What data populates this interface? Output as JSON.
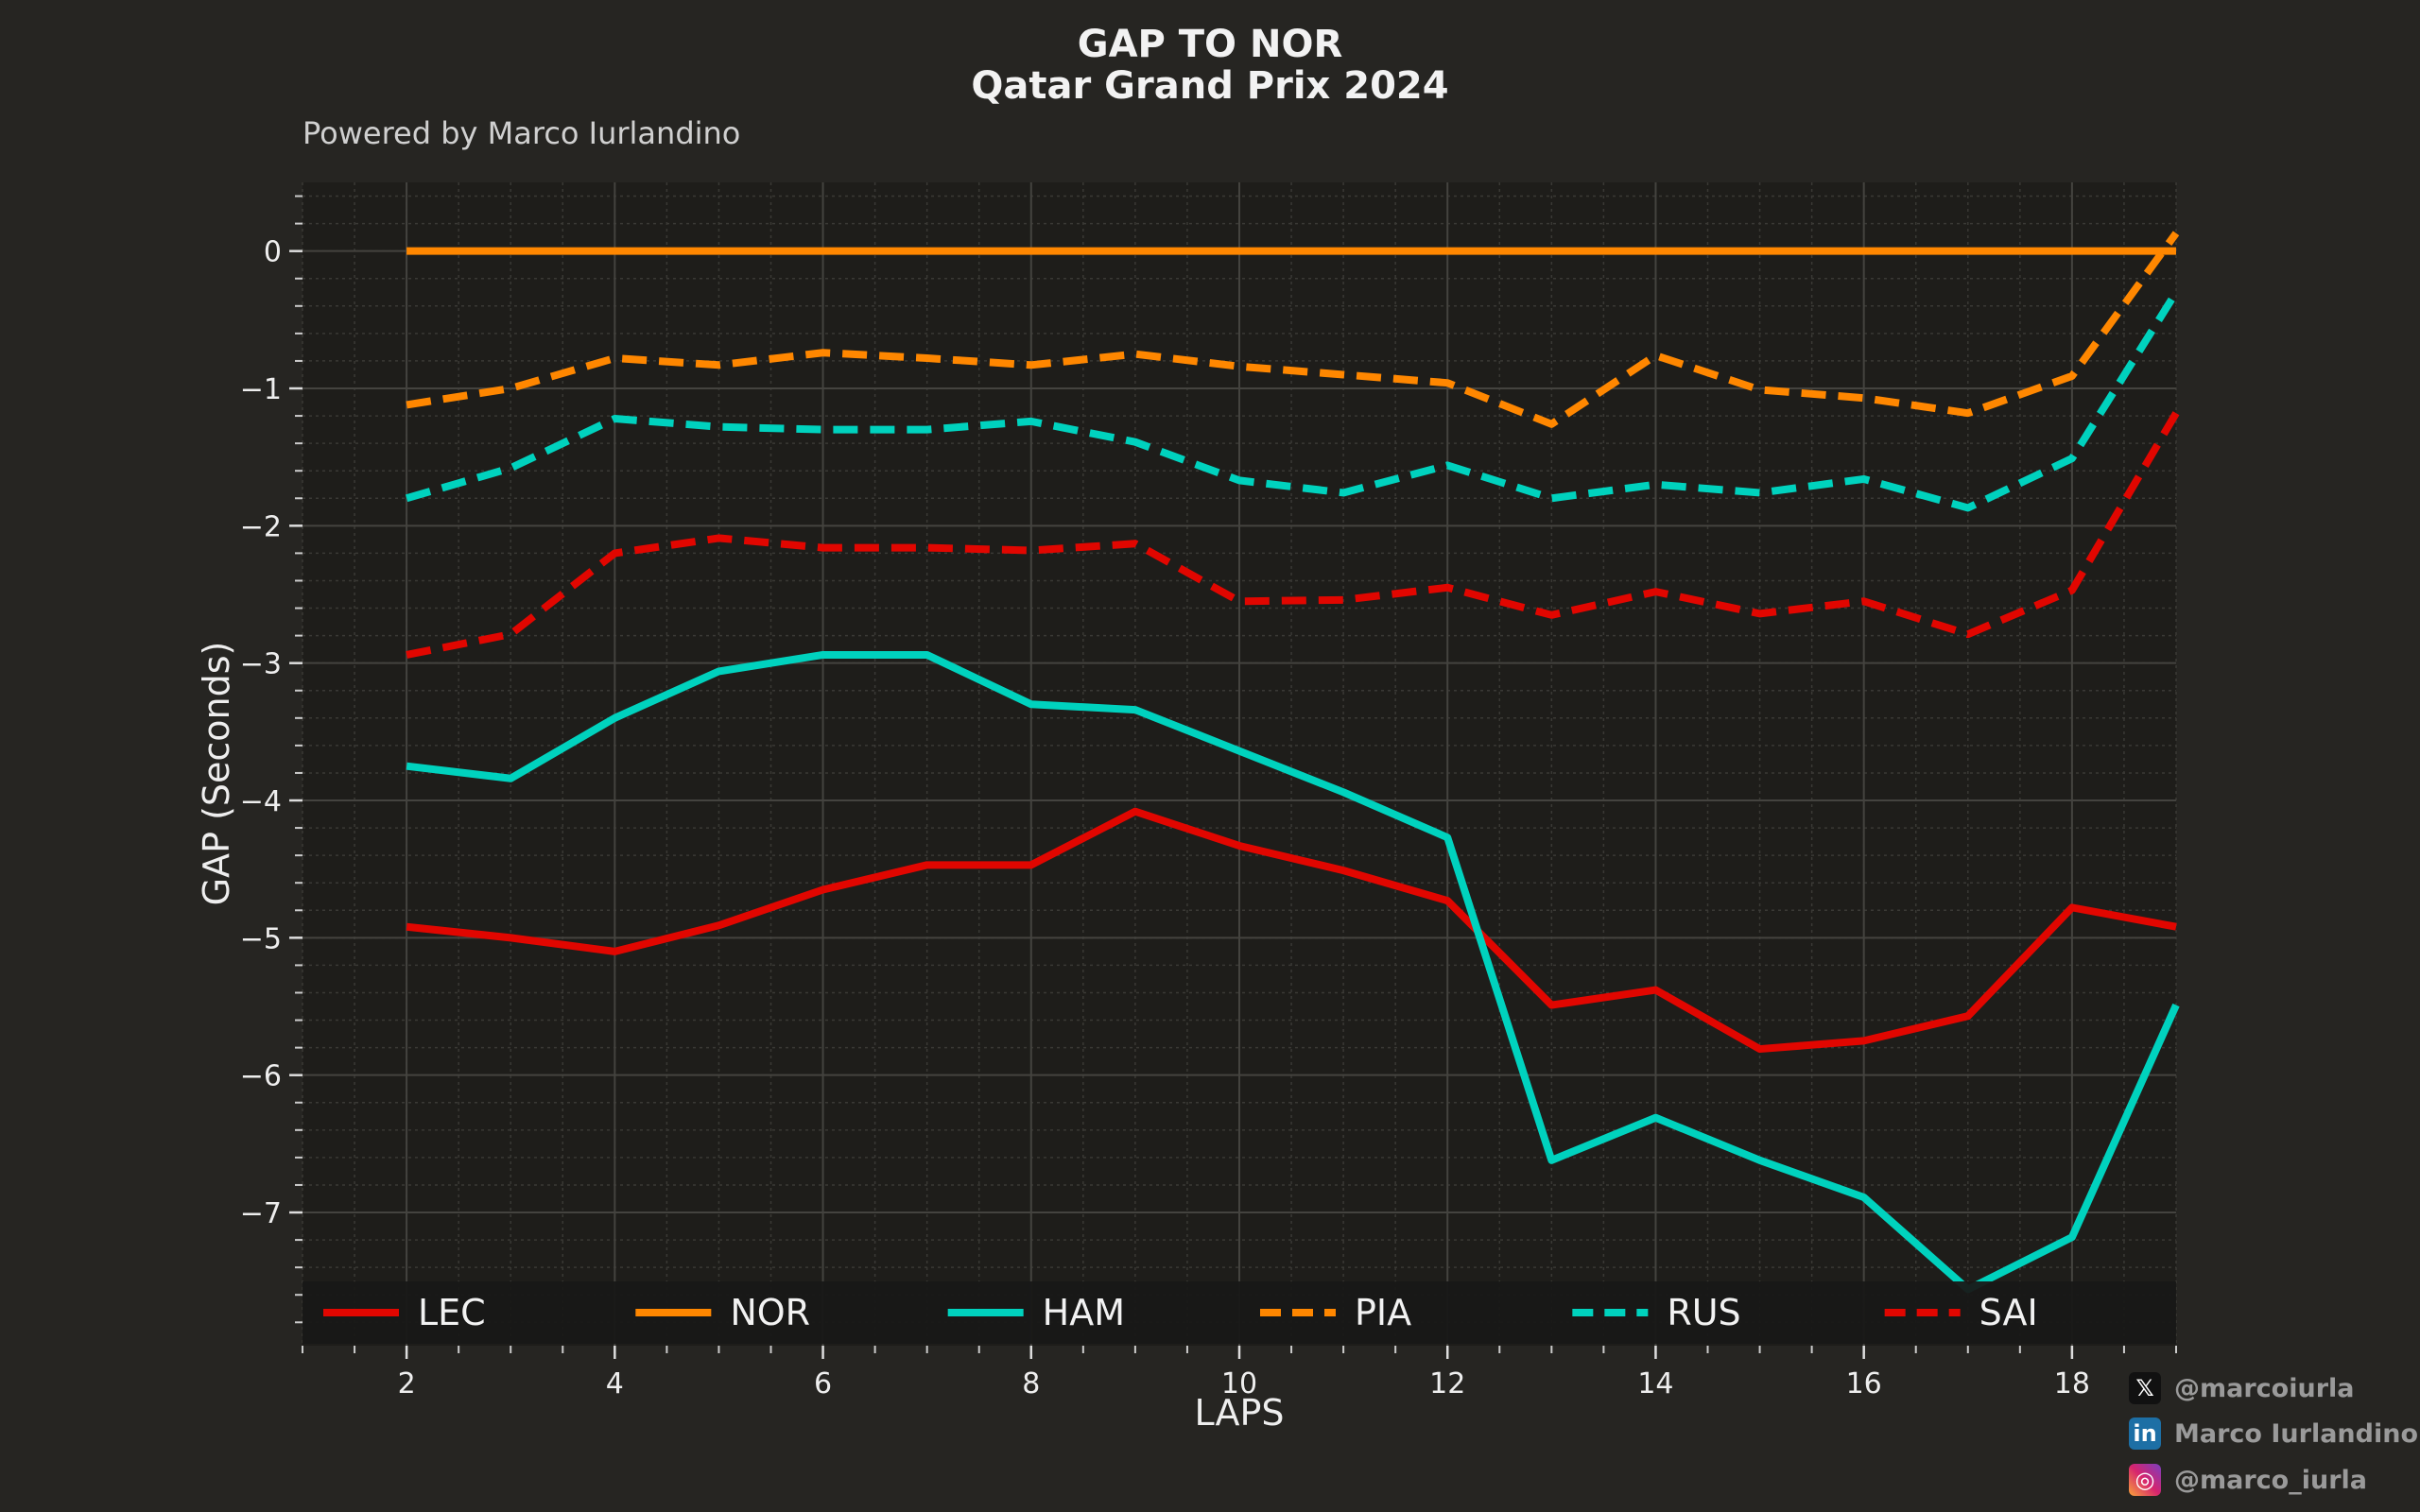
{
  "chart_data": {
    "type": "line",
    "title": "GAP TO NOR",
    "subtitle": "Qatar Grand Prix 2024",
    "credit": "Powered by Marco Iurlandino",
    "xlabel": "LAPS",
    "ylabel": "GAP (Seconds)",
    "xlim": [
      1,
      19
    ],
    "ylim": [
      -7.97,
      0.5
    ],
    "xticks": [
      2,
      4,
      6,
      8,
      10,
      12,
      14,
      16,
      18
    ],
    "yticks": [
      0,
      -1,
      -2,
      -3,
      -4,
      -5,
      -6,
      -7
    ],
    "ytick_labels": [
      "0",
      "−1",
      "−2",
      "−3",
      "−4",
      "−5",
      "−6",
      "−7"
    ],
    "grid": true,
    "legend_position": "bottom",
    "x": [
      2,
      3,
      4,
      5,
      6,
      7,
      8,
      9,
      10,
      11,
      12,
      13,
      14,
      15,
      16,
      17,
      18,
      19
    ],
    "series": [
      {
        "name": "LEC",
        "color": "#e10600",
        "dashed": false,
        "values": [
          -4.92,
          -5.0,
          -5.1,
          -4.91,
          -4.65,
          -4.47,
          -4.47,
          -4.08,
          -4.33,
          -4.51,
          -4.73,
          -5.49,
          -5.38,
          -5.81,
          -5.75,
          -5.57,
          -4.78,
          -4.92
        ]
      },
      {
        "name": "NOR",
        "color": "#ff8700",
        "dashed": false,
        "values": [
          0,
          0,
          0,
          0,
          0,
          0,
          0,
          0,
          0,
          0,
          0,
          0,
          0,
          0,
          0,
          0,
          0,
          0
        ]
      },
      {
        "name": "HAM",
        "color": "#00d2be",
        "dashed": false,
        "values": [
          -3.75,
          -3.84,
          -3.4,
          -3.06,
          -2.94,
          -2.94,
          -3.3,
          -3.34,
          -3.64,
          -3.94,
          -4.27,
          -6.62,
          -6.31,
          -6.62,
          -6.89,
          -7.56,
          -7.18,
          -5.49
        ]
      },
      {
        "name": "PIA",
        "color": "#ff8700",
        "dashed": true,
        "values": [
          -1.12,
          -1.0,
          -0.78,
          -0.83,
          -0.74,
          -0.78,
          -0.83,
          -0.75,
          -0.84,
          -0.9,
          -0.96,
          -1.26,
          -0.76,
          -1.01,
          -1.07,
          -1.18,
          -0.91,
          0.13
        ]
      },
      {
        "name": "RUS",
        "color": "#00d2be",
        "dashed": true,
        "values": [
          -1.8,
          -1.58,
          -1.22,
          -1.28,
          -1.3,
          -1.3,
          -1.24,
          -1.39,
          -1.67,
          -1.76,
          -1.56,
          -1.8,
          -1.7,
          -1.76,
          -1.66,
          -1.87,
          -1.51,
          -0.3
        ]
      },
      {
        "name": "SAI",
        "color": "#e10600",
        "dashed": true,
        "values": [
          -2.94,
          -2.79,
          -2.2,
          -2.09,
          -2.16,
          -2.16,
          -2.18,
          -2.13,
          -2.55,
          -2.54,
          -2.45,
          -2.65,
          -2.48,
          -2.64,
          -2.55,
          -2.79,
          -2.47,
          -1.18
        ]
      }
    ]
  },
  "footer": {
    "x_handle": "@marcoiurla",
    "linkedin": "Marco Iurlandino",
    "instagram": "@marco_iurla",
    "x_icon": "x-logo-icon",
    "linkedin_icon": "linkedin-icon",
    "instagram_icon": "instagram-icon"
  }
}
